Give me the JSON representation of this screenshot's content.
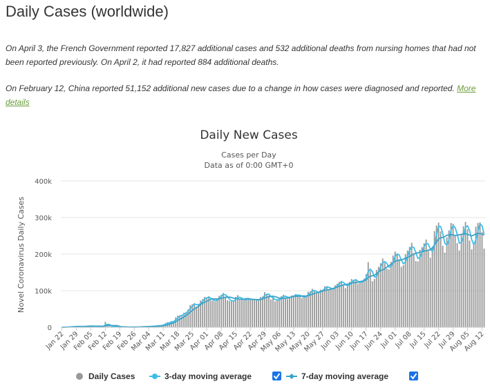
{
  "page": {
    "title": "Daily Cases (worldwide)",
    "note1": "On April 3, the French Government reported 17,827 additional cases and 532 additional deaths from nursing homes that had not been reported previously. On April 2, it had reported 884 additional deaths.",
    "note2": "On February 12, China reported 51,152 additional new cases due to a change in how cases were diagnosed and reported. ",
    "note2_link": "More details"
  },
  "colors": {
    "bars": "#999999",
    "ma3": "#3fbde8",
    "ma7": "#3aa3c8",
    "grid": "#e6e6e6",
    "checkbox": "#1a73e8"
  },
  "chart_data": {
    "type": "bar",
    "title": "Daily New Cases",
    "subtitle_1": "Cases per Day",
    "subtitle_2": "Data as of 0:00 GMT+0",
    "ylabel": "Novel Coronavirus Daily Cases",
    "ylim": [
      0,
      400000
    ],
    "yticks": [
      0,
      100000,
      200000,
      300000,
      400000
    ],
    "ytick_labels": [
      "0",
      "100k",
      "200k",
      "300k",
      "400k"
    ],
    "start_date": "2020-01-22",
    "xtick_labels": [
      "Jan 22",
      "Jan 29",
      "Feb 05",
      "Feb 12",
      "Feb 19",
      "Feb 26",
      "Mar 04",
      "Mar 11",
      "Mar 18",
      "Mar 25",
      "Apr 01",
      "Apr 08",
      "Apr 15",
      "Apr 22",
      "Apr 29",
      "May 06",
      "May 13",
      "May 20",
      "May 27",
      "Jun 03",
      "Jun 10",
      "Jun 17",
      "Jun 24",
      "Jul 01",
      "Jul 08",
      "Jul 15",
      "Jul 22",
      "Jul 29",
      "Aug 05",
      "Aug 12"
    ],
    "legend": [
      {
        "label": "Daily Cases",
        "marker": "circle"
      },
      {
        "label": "3-day moving average",
        "marker": "line-dot",
        "checked": true
      },
      {
        "label": "7-day moving average",
        "marker": "line-diamond",
        "checked": true
      }
    ],
    "series": [
      {
        "name": "Daily Cases",
        "values": [
          100,
          600,
          700,
          800,
          1800,
          2000,
          2600,
          2100,
          2600,
          2000,
          2100,
          2800,
          3200,
          3900,
          3700,
          3200,
          2600,
          2500,
          3000,
          2000,
          2300,
          15000,
          6500,
          2200,
          2200,
          2100,
          1900,
          600,
          1100,
          600,
          800,
          500,
          500,
          500,
          400,
          800,
          900,
          1200,
          1500,
          1800,
          2300,
          2200,
          2500,
          2800,
          3000,
          3700,
          4800,
          4800,
          4100,
          7900,
          11000,
          14000,
          13300,
          17000,
          17000,
          27000,
          32000,
          33000,
          33000,
          40000,
          42000,
          49000,
          61000,
          63000,
          66000,
          57000,
          63000,
          73000,
          77000,
          83000,
          80000,
          85000,
          73000,
          74000,
          70000,
          78000,
          86000,
          89000,
          94000,
          84000,
          74000,
          72000,
          71000,
          73000,
          83000,
          88000,
          75000,
          76000,
          74000,
          79000,
          76000,
          75000,
          78000,
          75000,
          74000,
          72000,
          83000,
          84000,
          96000,
          90000,
          87000,
          76000,
          80000,
          71000,
          75000,
          78000,
          85000,
          89000,
          82000,
          77000,
          84000,
          87000,
          86000,
          91000,
          87000,
          85000,
          80000,
          84000,
          85000,
          97000,
          98000,
          105000,
          98000,
          92000,
          94000,
          103000,
          103000,
          112000,
          113000,
          104000,
          104000,
          104000,
          115000,
          119000,
          124000,
          127000,
          118000,
          107000,
          116000,
          124000,
          132000,
          128000,
          131000,
          119000,
          122000,
          127000,
          133000,
          145000,
          178000,
          154000,
          126000,
          132000,
          157000,
          165000,
          175000,
          188000,
          176000,
          160000,
          158000,
          179000,
          196000,
          207000,
          199000,
          186000,
          165000,
          170000,
          200000,
          210000,
          220000,
          231000,
          203000,
          181000,
          180000,
          212000,
          219000,
          230000,
          240000,
          212000,
          190000,
          219000,
          263000,
          278000,
          286000,
          262000,
          223000,
          204000,
          246000,
          265000,
          285000,
          283000,
          250000,
          230000,
          210000,
          255000,
          276000,
          288000,
          268000,
          237000,
          213000,
          228000,
          275000,
          285000,
          287000,
          260000,
          215000
        ]
      },
      {
        "name": "3-day moving average",
        "window": 3
      },
      {
        "name": "7-day moving average",
        "window": 7
      }
    ]
  }
}
